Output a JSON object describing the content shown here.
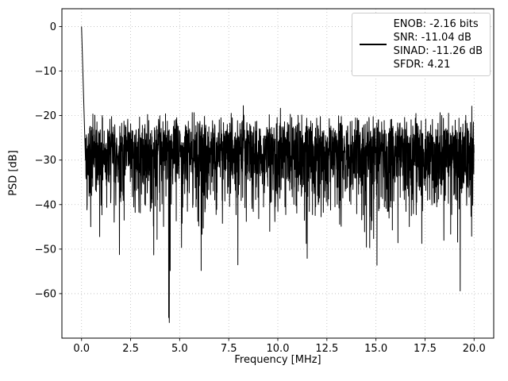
{
  "figure": {
    "background": "#ffffff"
  },
  "chart_data": {
    "type": "line",
    "title": "",
    "xlabel": "Frequency [MHz]",
    "ylabel": "PSD [dB]",
    "xlim": [
      -1.0,
      21.0
    ],
    "ylim": [
      -70,
      4
    ],
    "grid": true,
    "grid_color": "#bbbbbb",
    "xticks": {
      "values": [
        0.0,
        2.5,
        5.0,
        7.5,
        10.0,
        12.5,
        15.0,
        17.5,
        20.0
      ],
      "labels": [
        "0.0",
        "2.5",
        "5.0",
        "7.5",
        "10.0",
        "12.5",
        "15.0",
        "17.5",
        "20.0"
      ]
    },
    "yticks": {
      "values": [
        0,
        -10,
        -20,
        -30,
        -40,
        -50,
        -60
      ],
      "labels": [
        "0",
        "−10",
        "−20",
        "−30",
        "−40",
        "−50",
        "−60"
      ]
    },
    "legend": {
      "position": "upper right",
      "entries": [
        {
          "color": "#000000",
          "label_lines": [
            "ENOB: -2.16 bits",
            "SNR: -11.04 dB",
            "SINAD: -11.26 dB",
            "SFDR: 4.21"
          ]
        }
      ]
    },
    "series": [
      {
        "name": "PSD",
        "color": "#000000",
        "linewidth": 1,
        "x_range_mhz": [
          0,
          20
        ],
        "description": "Noisy power spectral density: DC spike at 0 MHz reaching 0 dB, broadband noise floor centered near -29 dB spanning roughly -20 to -40 dB, occasional deep nulls down to about -66 dB",
        "synthesis": {
          "seed": 42,
          "n_points": 2600,
          "x_start": 0,
          "x_end": 20,
          "noise_floor_db": -27,
          "distribution": "10log10(exponential)",
          "dc_peak_db": 0,
          "dc_decay_db_per_mhz": 150,
          "min_db": -66.5,
          "max_db": 0
        },
        "stats": {
          "enob_bits": -2.16,
          "snr_db": -11.04,
          "sinad_db": -11.26,
          "sfdr": 4.21
        }
      }
    ]
  }
}
